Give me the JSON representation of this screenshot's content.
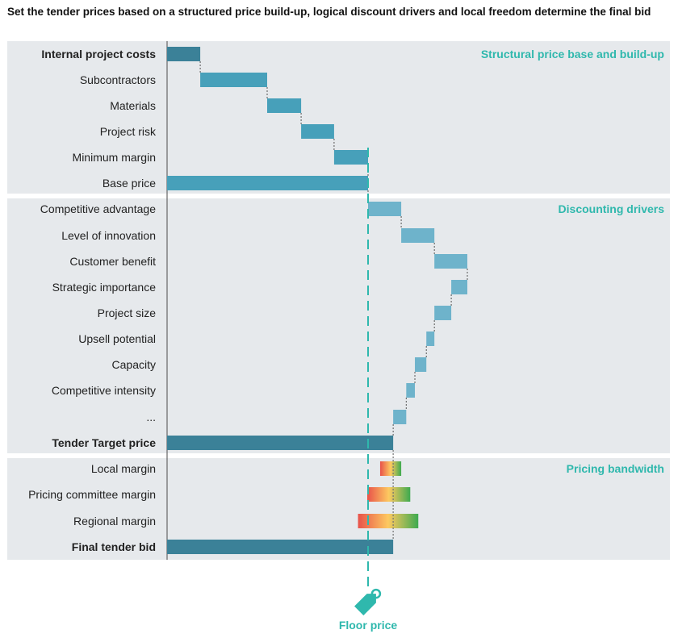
{
  "title": "Set the tender prices based on a structured price build-up, logical discount drivers and local freedom determine the final bid",
  "colors": {
    "total": "#3b8198",
    "build": "#47a0ba",
    "driver": "#6eb3cb",
    "accent": "#2fb8ad",
    "panel": "#e6e9ec",
    "grad_low": "#e8524a",
    "grad_mid": "#fdc960",
    "grad_high": "#3daa4f"
  },
  "chart_data": {
    "type": "waterfall",
    "title": "Set the tender prices based on a structured price build-up, logical discount drivers and local freedom determine the final bid",
    "xlabel": "",
    "ylabel": "",
    "grid": false,
    "floor_price": {
      "label": "Floor price",
      "value": 100,
      "icon": "price-tag-icon"
    },
    "sections": [
      {
        "label": "Structural price base and build-up",
        "rows": [
          {
            "label": "Internal project costs",
            "kind": "total",
            "bold": true,
            "start": 0,
            "end": 16.5
          },
          {
            "label": "Subcontractors",
            "kind": "build",
            "start": 16.5,
            "end": 49.8
          },
          {
            "label": "Materials",
            "kind": "build",
            "start": 49.8,
            "end": 66.7
          },
          {
            "label": "Project risk",
            "kind": "build",
            "start": 66.7,
            "end": 83.1
          },
          {
            "label": "Minimum margin",
            "kind": "build",
            "start": 83.1,
            "end": 100
          },
          {
            "label": "Base price",
            "kind": "build",
            "start": 0,
            "end": 100
          }
        ]
      },
      {
        "label": "Discounting drivers",
        "rows": [
          {
            "label": "Competitive advantage",
            "kind": "driver",
            "start": 100,
            "end": 116.5
          },
          {
            "label": "Level of innovation",
            "kind": "driver",
            "start": 116.5,
            "end": 133
          },
          {
            "label": "Customer benefit",
            "kind": "driver",
            "start": 133,
            "end": 149.4
          },
          {
            "label": "Strategic importance",
            "kind": "driver",
            "start": 149.4,
            "end": 141.4
          },
          {
            "label": "Project size",
            "kind": "driver",
            "start": 141.4,
            "end": 133
          },
          {
            "label": "Upsell potential",
            "kind": "driver",
            "start": 133,
            "end": 129
          },
          {
            "label": "Capacity",
            "kind": "driver",
            "start": 129,
            "end": 123.3
          },
          {
            "label": "Competitive intensity",
            "kind": "driver",
            "start": 123.3,
            "end": 119
          },
          {
            "label": "...",
            "kind": "driver",
            "start": 119,
            "end": 112.5
          },
          {
            "label": "Tender Target price",
            "kind": "total",
            "bold": true,
            "start": 0,
            "end": 112.5
          }
        ]
      },
      {
        "label": "Pricing bandwidth",
        "rows": [
          {
            "label": "Local margin",
            "kind": "range",
            "start": 106,
            "end": 116.5
          },
          {
            "label": "Pricing committee margin",
            "kind": "range",
            "start": 99.6,
            "end": 121
          },
          {
            "label": "Regional margin",
            "kind": "range",
            "start": 95,
            "end": 125
          },
          {
            "label": "Final tender bid",
            "kind": "total",
            "bold": true,
            "start": 0,
            "end": 112.5
          }
        ]
      }
    ]
  }
}
